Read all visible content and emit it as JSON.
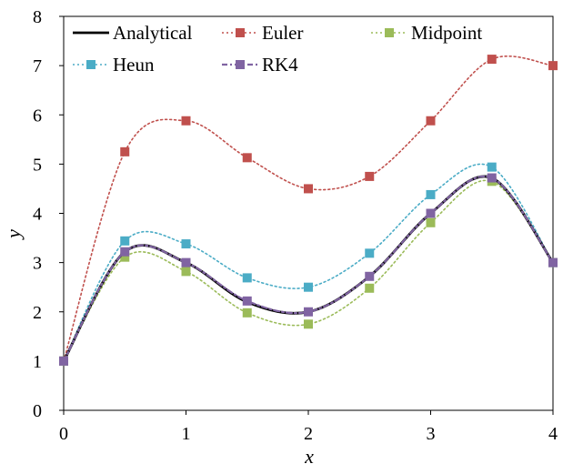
{
  "chart_data": {
    "type": "line",
    "title": "",
    "xlabel": "x",
    "ylabel": "y",
    "xlim": [
      0,
      4
    ],
    "ylim": [
      0,
      8
    ],
    "x_ticks": [
      "0",
      "1",
      "2",
      "3",
      "4"
    ],
    "y_ticks": [
      "0",
      "1",
      "2",
      "3",
      "4",
      "5",
      "6",
      "7",
      "8"
    ],
    "grid": false,
    "legend_position": "top",
    "series": [
      {
        "name": "Analytical",
        "color": "#000000",
        "style": "solid",
        "marker": "none",
        "x": [
          0,
          0.5,
          1,
          1.5,
          2,
          2.5,
          3,
          3.5,
          4
        ],
        "y": [
          1.0,
          3.22,
          3.0,
          2.2,
          2.0,
          2.72,
          4.0,
          4.72,
          3.0
        ]
      },
      {
        "name": "Euler",
        "color": "#c0504d",
        "style": "dotted",
        "marker": "square",
        "x": [
          0,
          0.5,
          1,
          1.5,
          2,
          2.5,
          3,
          3.5,
          4
        ],
        "y": [
          1.0,
          5.25,
          5.88,
          5.13,
          4.5,
          4.75,
          5.88,
          7.13,
          7.0
        ]
      },
      {
        "name": "Midpoint",
        "color": "#9bbb59",
        "style": "dotted",
        "marker": "square",
        "x": [
          0,
          0.5,
          1,
          1.5,
          2,
          2.5,
          3,
          3.5,
          4
        ],
        "y": [
          1.0,
          3.11,
          2.82,
          1.98,
          1.75,
          2.48,
          3.81,
          4.65,
          3.0
        ]
      },
      {
        "name": "Heun",
        "color": "#4bacc6",
        "style": "dotted",
        "marker": "square",
        "x": [
          0,
          0.5,
          1,
          1.5,
          2,
          2.5,
          3,
          3.5,
          4
        ],
        "y": [
          1.0,
          3.44,
          3.38,
          2.69,
          2.5,
          3.19,
          4.38,
          4.94,
          3.0
        ]
      },
      {
        "name": "RK4",
        "color": "#8064a2",
        "style": "dash-dot",
        "marker": "square",
        "x": [
          0,
          0.5,
          1,
          1.5,
          2,
          2.5,
          3,
          3.5,
          4
        ],
        "y": [
          1.0,
          3.22,
          3.0,
          2.22,
          2.0,
          2.72,
          4.0,
          4.72,
          3.0
        ]
      }
    ]
  }
}
